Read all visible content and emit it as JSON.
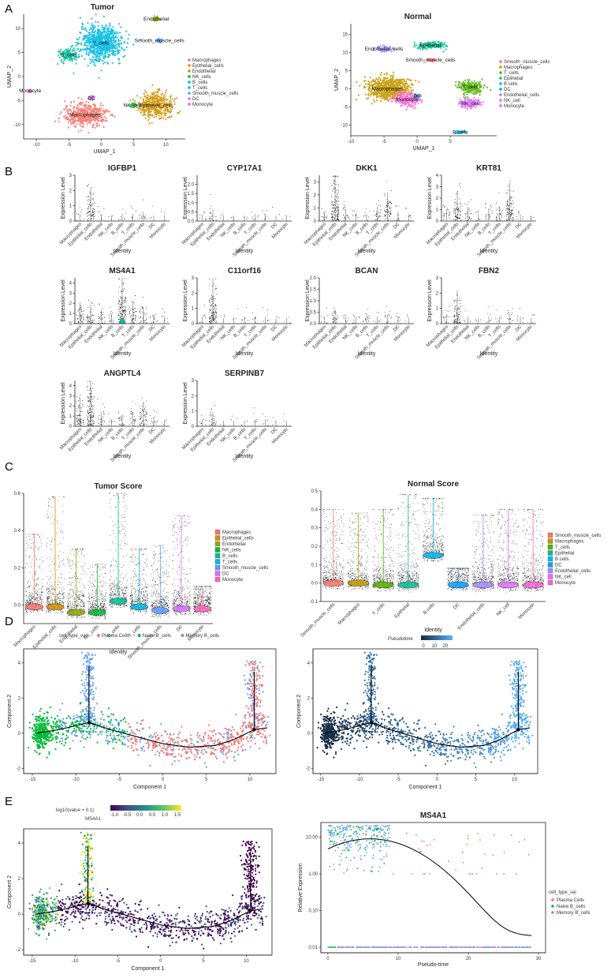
{
  "panel_letters": [
    "A",
    "B",
    "C",
    "D",
    "E"
  ],
  "chart_data": [
    {
      "id": "A1",
      "type": "scatter",
      "title": "Tumor",
      "xlabel": "UMAP_1",
      "ylabel": "UMAP_2",
      "xticks": [
        "-10",
        "-5",
        "0",
        "5",
        "10"
      ],
      "yticks": [
        "-10",
        "-5",
        "0",
        "5",
        "10"
      ],
      "xlim": [
        -12,
        13
      ],
      "ylim": [
        -13,
        13
      ],
      "legend_position": "right",
      "legend": [
        {
          "name": "Macrophages",
          "color": "#f8766d"
        },
        {
          "name": "Epithelial_cells",
          "color": "#d39200"
        },
        {
          "name": "Endothelial",
          "color": "#93aa00"
        },
        {
          "name": "NK_cells",
          "color": "#00ba38"
        },
        {
          "name": "B_cells",
          "color": "#00c19f"
        },
        {
          "name": "T_cells",
          "color": "#00b9e3"
        },
        {
          "name": "Smooth_muscle_cells",
          "color": "#619cff"
        },
        {
          "name": "DC",
          "color": "#db72fb"
        },
        {
          "name": "Monocyte",
          "color": "#ff61c3"
        }
      ],
      "clusters": [
        {
          "label": "T_cells",
          "x": 0,
          "y": 7,
          "rx": 3.5,
          "ry": 4,
          "color": "#00b9e3"
        },
        {
          "label": "B_cells",
          "x": -5,
          "y": 4.5,
          "rx": 1.6,
          "ry": 1.5,
          "color": "#00c19f"
        },
        {
          "label": "Macrophages",
          "x": -2.5,
          "y": -8,
          "rx": 3.5,
          "ry": 2.6,
          "color": "#f8766d"
        },
        {
          "label": "DC",
          "x": -1.5,
          "y": -4.5,
          "rx": 0.6,
          "ry": 0.5,
          "color": "#db72fb"
        },
        {
          "label": "NK_cells",
          "x": 5,
          "y": -6,
          "rx": 0.6,
          "ry": 0.5,
          "color": "#00ba38"
        },
        {
          "label": "Epithelial_cells",
          "x": 8.5,
          "y": -6,
          "rx": 2.8,
          "ry": 2.8,
          "color": "#d39200"
        },
        {
          "label": "Endothelial",
          "x": 8.5,
          "y": 12,
          "rx": 0.6,
          "ry": 0.6,
          "color": "#93aa00"
        },
        {
          "label": "Smooth_muscle_cells",
          "x": 9,
          "y": 7.5,
          "rx": 0.6,
          "ry": 0.5,
          "color": "#619cff"
        },
        {
          "label": "Monocyte",
          "x": -11,
          "y": -3,
          "rx": 0.3,
          "ry": 0.3,
          "color": "#ff61c3"
        }
      ]
    },
    {
      "id": "A2",
      "type": "scatter",
      "title": "Normal",
      "xlabel": "UMAP_1",
      "ylabel": "UMAP_2",
      "xticks": [
        "-10",
        "-5",
        "0",
        "5"
      ],
      "yticks": [
        "-10",
        "-5",
        "0",
        "5",
        "10",
        "15"
      ],
      "xlim": [
        -10,
        12
      ],
      "ylim": [
        -13,
        18
      ],
      "legend_position": "right",
      "legend": [
        {
          "name": "Smooth_muscle_cells",
          "color": "#f8766d"
        },
        {
          "name": "Macrophages",
          "color": "#c49a00"
        },
        {
          "name": "T_cells",
          "color": "#53b400"
        },
        {
          "name": "Epithelial",
          "color": "#00c094"
        },
        {
          "name": "B cells",
          "color": "#00b6eb"
        },
        {
          "name": "DC",
          "color": "#06a4ff"
        },
        {
          "name": "Endothelial_cells",
          "color": "#a58aff"
        },
        {
          "name": "NK_cell",
          "color": "#df70f8"
        },
        {
          "name": "Monocyte",
          "color": "#fb61d7"
        }
      ],
      "clusters": [
        {
          "label": "Macrophages",
          "x": -4.5,
          "y": 0,
          "rx": 3.5,
          "ry": 3.5,
          "color": "#c49a00"
        },
        {
          "label": "Monocyte",
          "x": -1.5,
          "y": -3,
          "rx": 2,
          "ry": 2,
          "color": "#fb61d7"
        },
        {
          "label": "T_cells",
          "x": 8,
          "y": 0.5,
          "rx": 2,
          "ry": 2,
          "color": "#53b400"
        },
        {
          "label": "NK_cell",
          "x": 8,
          "y": -4,
          "rx": 2,
          "ry": 1.5,
          "color": "#df70f8"
        },
        {
          "label": "Endothelial_cells",
          "x": -5,
          "y": 11,
          "rx": 1.5,
          "ry": 1,
          "color": "#a58aff"
        },
        {
          "label": "Epithelial",
          "x": 2,
          "y": 12,
          "rx": 2.5,
          "ry": 1,
          "color": "#00c094"
        },
        {
          "label": "Smooth_muscle_cells",
          "x": 2,
          "y": 8,
          "rx": 0.8,
          "ry": 0.5,
          "color": "#f8766d"
        },
        {
          "label": "DC",
          "x": 0,
          "y": -2,
          "rx": 0.4,
          "ry": 0.3,
          "color": "#06a4ff"
        },
        {
          "label": "B cells",
          "x": 6.5,
          "y": -12,
          "rx": 1,
          "ry": 0.4,
          "color": "#00b6eb"
        }
      ]
    },
    {
      "id": "B",
      "type": "scatter",
      "ylabel": "Expression Level",
      "xlabel": "Identity",
      "categories": [
        "Macrophages",
        "Epithelial_cells",
        "Endothelial",
        "NK_cells",
        "B_cells",
        "T_cells",
        "Smooth_muscle_cells",
        "DC",
        "Monocyte"
      ],
      "genes": [
        {
          "name": "IGFBP1",
          "ymax": 3,
          "yticks": [
            "0",
            "1",
            "2",
            "3"
          ],
          "intensity": [
            0.05,
            0.6,
            0.05,
            0.02,
            0.05,
            0.05,
            0.1,
            0.02,
            0.02
          ]
        },
        {
          "name": "CYP17A1",
          "ymax": 2.5,
          "yticks": [
            "0.0",
            "0.5",
            "1.0",
            "1.5",
            "2.0"
          ],
          "intensity": [
            0.05,
            0.15,
            0.02,
            0.02,
            0.02,
            0.05,
            0.05,
            0.02,
            0.02
          ]
        },
        {
          "name": "DKK1",
          "ymax": 3.5,
          "yticks": [
            "0",
            "1",
            "2",
            "3"
          ],
          "intensity": [
            0.1,
            1.0,
            0.15,
            0.05,
            0.05,
            0.2,
            0.5,
            0.1,
            0.05
          ]
        },
        {
          "name": "KRT81",
          "ymax": 4,
          "yticks": [
            "0",
            "1",
            "2",
            "3",
            "4"
          ],
          "intensity": [
            0.15,
            0.5,
            0.2,
            0.05,
            0.15,
            0.2,
            0.7,
            0.05,
            0.02
          ]
        },
        {
          "name": "MS4A1",
          "ymax": 4.5,
          "yticks": [
            "0",
            "1",
            "2",
            "3",
            "4"
          ],
          "intensity": [
            0.35,
            0.3,
            0.2,
            0.1,
            1.0,
            0.35,
            0.25,
            0.1,
            0.05
          ]
        },
        {
          "name": "C11orf16",
          "ymax": 3,
          "yticks": [
            "0",
            "1",
            "2",
            "3"
          ],
          "intensity": [
            0.05,
            0.9,
            0.02,
            0.02,
            0.05,
            0.05,
            0.05,
            0.02,
            0.02
          ]
        },
        {
          "name": "BCAN",
          "ymax": 2,
          "yticks": [
            "0.0",
            "0.5",
            "1.0",
            "1.5",
            "2.0"
          ],
          "intensity": [
            0.05,
            0.2,
            0.05,
            0.05,
            0.1,
            0.05,
            0.1,
            0.05,
            0.02
          ]
        },
        {
          "name": "FBN2",
          "ymax": 3,
          "yticks": [
            "0",
            "1",
            "2",
            "3"
          ],
          "intensity": [
            0.1,
            0.6,
            0.05,
            0.02,
            0.05,
            0.05,
            0.1,
            0.05,
            0.02
          ]
        },
        {
          "name": "ANGPTL4",
          "ymax": 4.5,
          "yticks": [
            "0",
            "1",
            "2",
            "3",
            "4"
          ],
          "intensity": [
            0.5,
            1.0,
            0.2,
            0.05,
            0.15,
            0.2,
            0.4,
            0.1,
            0.02
          ]
        },
        {
          "name": "SERPINB7",
          "ymax": 3,
          "yticks": [
            "0",
            "1",
            "2",
            "3"
          ],
          "intensity": [
            0.05,
            0.2,
            0.02,
            0.02,
            0.02,
            0.05,
            0.05,
            0.02,
            0.02
          ]
        }
      ]
    },
    {
      "id": "C1",
      "type": "scatter",
      "title": "Tumor Score",
      "xlabel": "Identity",
      "ylim": [
        -0.1,
        0.6
      ],
      "yticks": [
        "0.0",
        "0.2",
        "0.4",
        "0.6"
      ],
      "legend_position": "right",
      "categories": [
        "Macrophages",
        "Epithelial_cells",
        "Endothelial",
        "NK_cells",
        "B_cells",
        "T_cells",
        "Smooth_muscle_cells",
        "DC",
        "Monocyte"
      ],
      "colors": [
        "#f8766d",
        "#d39200",
        "#93aa00",
        "#00ba38",
        "#00c19f",
        "#00b9e3",
        "#619cff",
        "#db72fb",
        "#ff61c3"
      ],
      "median": [
        -0.01,
        -0.01,
        -0.04,
        -0.04,
        0.02,
        -0.01,
        -0.03,
        -0.02,
        -0.02
      ],
      "max": [
        0.38,
        0.58,
        0.3,
        0.22,
        0.6,
        0.3,
        0.32,
        0.48,
        0.1
      ]
    },
    {
      "id": "C2",
      "type": "scatter",
      "title": "Normal Score",
      "xlabel": "Identity",
      "ylim": [
        -0.1,
        0.5
      ],
      "yticks": [
        "-0.1",
        "0.0",
        "0.1",
        "0.2",
        "0.3",
        "0.4",
        "0.5"
      ],
      "legend_position": "right",
      "categories": [
        "Smooth_muscle_cells",
        "Macrophages",
        "T_cells",
        "Epithelial",
        "B cells",
        "DC",
        "Endothelial_cells",
        "NK_cell",
        "Monocyte"
      ],
      "colors": [
        "#f8766d",
        "#c49a00",
        "#53b400",
        "#00c094",
        "#00b6eb",
        "#06a4ff",
        "#a58aff",
        "#df70f8",
        "#fb61d7"
      ],
      "median": [
        0.0,
        0.0,
        -0.01,
        -0.01,
        0.15,
        -0.01,
        -0.01,
        -0.01,
        -0.01
      ],
      "max": [
        0.4,
        0.38,
        0.4,
        0.48,
        0.46,
        0.08,
        0.37,
        0.4,
        0.4
      ]
    },
    {
      "id": "D1",
      "type": "scatter",
      "legend_title": "cell_type_val",
      "legend": [
        {
          "name": "Plasma Cells",
          "color": "#f8766d"
        },
        {
          "name": "Naive B_cells",
          "color": "#00ba38"
        },
        {
          "name": "Memory B_cells",
          "color": "#619cff"
        }
      ],
      "xlabel": "Component 1",
      "ylabel": "Component 2",
      "xticks": [
        "-15",
        "-10",
        "-5",
        "0",
        "5",
        "10"
      ],
      "yticks": [
        "-2",
        "0",
        "2",
        "4"
      ],
      "xlim": [
        -16,
        13
      ],
      "ylim": [
        -2.3,
        4.8
      ]
    },
    {
      "id": "D2",
      "type": "scatter",
      "legend_title": "Pseudotime",
      "colorbar_ticks": [
        "0",
        "10",
        "20"
      ],
      "xlabel": "Component 1",
      "ylabel": "Component 2",
      "xticks": [
        "-15",
        "-10",
        "-5",
        "0",
        "5",
        "10"
      ],
      "yticks": [
        "-2",
        "0",
        "2",
        "4"
      ],
      "xlim": [
        -16,
        13
      ],
      "ylim": [
        -2.3,
        4.8
      ]
    },
    {
      "id": "E1",
      "type": "scatter",
      "title": "MS4A1",
      "legend_title": "log10(value + 0.1)",
      "colorbar_ticks": [
        "-1.0",
        "-0.5",
        "0.0",
        "0.5",
        "1.0",
        "1.5"
      ],
      "xlabel": "Component 1",
      "ylabel": "Component 2",
      "xticks": [
        "-15",
        "-10",
        "-5",
        "0",
        "5",
        "10"
      ],
      "yticks": [
        "-2",
        "0",
        "2",
        "4"
      ],
      "xlim": [
        -16,
        13
      ],
      "ylim": [
        -2.3,
        4.8
      ]
    },
    {
      "id": "E2",
      "type": "scatter",
      "title": "MS4A1",
      "xlabel": "Pseudo-time",
      "ylabel": "Relative Expression",
      "xticks": [
        "0",
        "10",
        "20",
        "30"
      ],
      "yticks": [
        "0.01",
        "0.10",
        "1.00",
        "10.00"
      ],
      "xlim": [
        -1,
        31
      ],
      "ylim_log10": [
        -2.15,
        1.4
      ],
      "legend_title": "cell_type_val",
      "legend": [
        {
          "name": "Plasma Cells",
          "color": "#f8766d"
        },
        {
          "name": "Naive B_cells",
          "color": "#00ba38"
        },
        {
          "name": "Memory B_cells",
          "color": "#619cff"
        }
      ]
    }
  ]
}
